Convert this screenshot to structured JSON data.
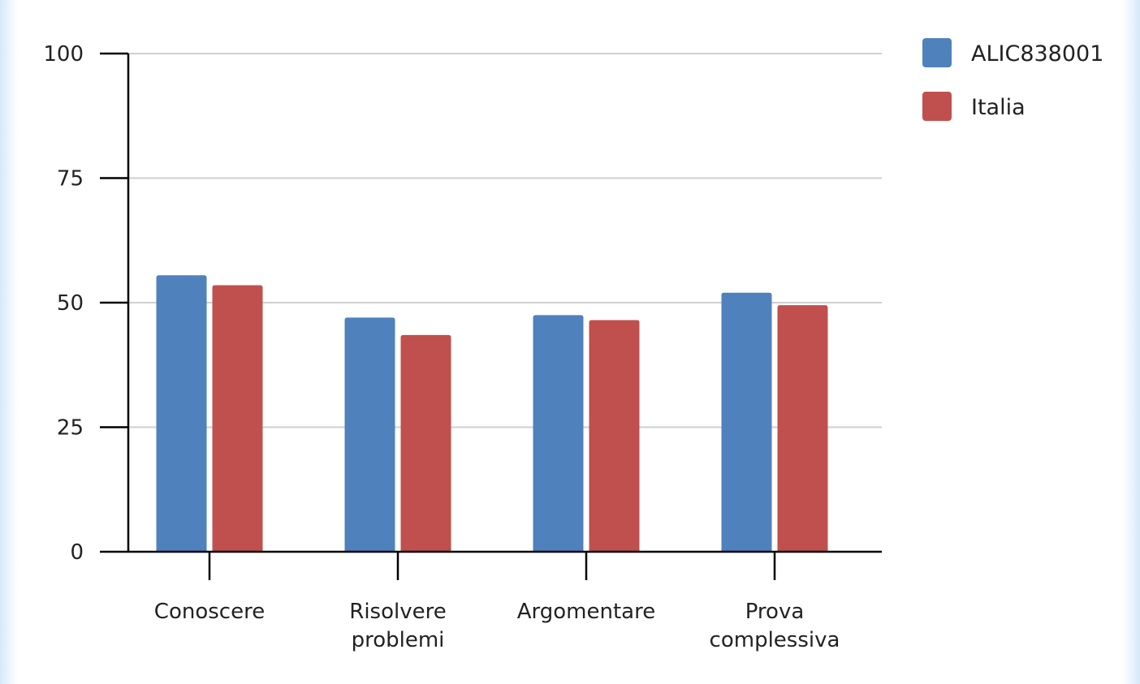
{
  "chart_data": {
    "type": "bar",
    "categories": [
      [
        "Conoscere"
      ],
      [
        "Risolvere",
        "problemi"
      ],
      [
        "Argomentare"
      ],
      [
        "Prova",
        "complessiva"
      ]
    ],
    "series": [
      {
        "name": "ALIC838001",
        "color": "#4f81bd",
        "values": [
          55.5,
          47.0,
          47.5,
          52.0
        ]
      },
      {
        "name": "Italia",
        "color": "#c0504d",
        "values": [
          53.5,
          43.5,
          46.5,
          49.5
        ]
      }
    ],
    "yticks": [
      0,
      25,
      50,
      75,
      100
    ],
    "ylim": [
      0,
      100
    ],
    "grid": true,
    "legend": "top-right"
  }
}
